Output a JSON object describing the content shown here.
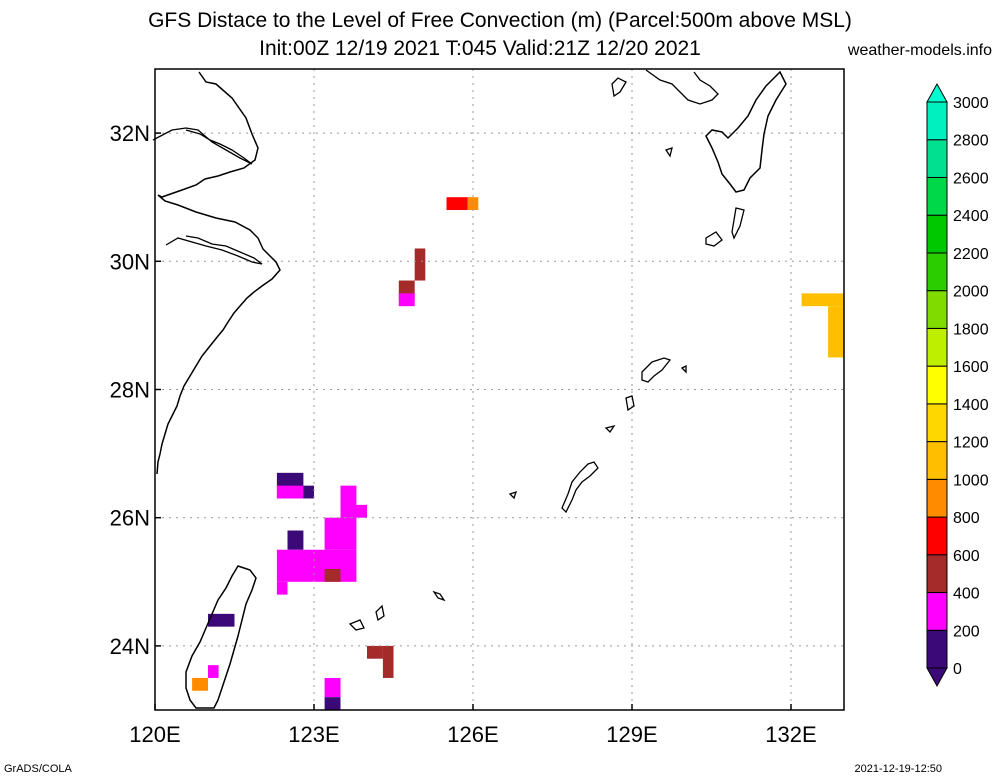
{
  "header": {
    "title_line1": "GFS Distace to the Level of Free Convection (m) (Parcel:500m above MSL)",
    "title_line2": "Init:00Z 12/19 2021 T:045 Valid:21Z 12/20 2021",
    "site": "weather-models.info"
  },
  "footer": {
    "left": "GrADS/COLA",
    "right": "2021-12-19-12:50"
  },
  "chart_data": {
    "type": "heatmap",
    "title": "GFS Distace to the Level of Free Convection (m) (Parcel:500m above MSL)",
    "subtitle": "Init:00Z 12/19 2021 T:045 Valid:21Z 12/20 2021",
    "xlim": [
      120.0,
      133.0
    ],
    "ylim": [
      23.0,
      33.0
    ],
    "x_ticks": [
      {
        "value": 120,
        "label": "120E"
      },
      {
        "value": 123,
        "label": "123E"
      },
      {
        "value": 126,
        "label": "126E"
      },
      {
        "value": 129,
        "label": "129E"
      },
      {
        "value": 132,
        "label": "132E"
      }
    ],
    "y_ticks": [
      {
        "value": 24,
        "label": "24N"
      },
      {
        "value": 26,
        "label": "26N"
      },
      {
        "value": 28,
        "label": "28N"
      },
      {
        "value": 30,
        "label": "30N"
      },
      {
        "value": 32,
        "label": "32N"
      }
    ],
    "grid": true,
    "colorbar": {
      "levels": [
        0,
        200,
        400,
        600,
        800,
        1000,
        1200,
        1400,
        1600,
        1800,
        2000,
        2200,
        2400,
        2600,
        2800,
        3000
      ],
      "labels": [
        "0",
        "200",
        "400",
        "600",
        "800",
        "1000",
        "1200",
        "1400",
        "1600",
        "1800",
        "2000",
        "2200",
        "2400",
        "2600",
        "2800",
        "3000"
      ],
      "colors": [
        "#3c0a78",
        "#ff00ff",
        "#a52a2a",
        "#ff0000",
        "#ff8c00",
        "#ffbf00",
        "#ffd700",
        "#ffff00",
        "#bfef00",
        "#80dc00",
        "#2ccd00",
        "#00c800",
        "#00d84a",
        "#00e090",
        "#00f0c0"
      ],
      "under_color": "#3c0a78",
      "over_color": "#00ffd0"
    },
    "cells": [
      {
        "lon": 125.5,
        "lat": 30.8,
        "lon2": 125.9,
        "lat2": 31.0,
        "value": 500,
        "color": "#ff0000"
      },
      {
        "lon": 125.9,
        "lat": 30.8,
        "lon2": 126.1,
        "lat2": 31.0,
        "value": 800,
        "color": "#ff8c00"
      },
      {
        "lon": 124.9,
        "lat": 29.7,
        "lon2": 125.1,
        "lat2": 30.2,
        "value": 300,
        "color": "#a52a2a"
      },
      {
        "lon": 124.6,
        "lat": 29.4,
        "lon2": 124.9,
        "lat2": 29.7,
        "value": 300,
        "color": "#a52a2a"
      },
      {
        "lon": 124.6,
        "lat": 29.3,
        "lon2": 124.9,
        "lat2": 29.5,
        "value": 150,
        "color": "#ff00ff"
      },
      {
        "lon": 132.2,
        "lat": 29.3,
        "lon2": 133.0,
        "lat2": 29.5,
        "value": 900,
        "color": "#ffbf00"
      },
      {
        "lon": 132.7,
        "lat": 28.5,
        "lon2": 133.0,
        "lat2": 29.3,
        "value": 900,
        "color": "#ffbf00"
      },
      {
        "lon": 122.3,
        "lat": 26.3,
        "lon2": 122.8,
        "lat2": 26.7,
        "value": 50,
        "color": "#3c0a78"
      },
      {
        "lon": 122.3,
        "lat": 26.3,
        "lon2": 122.8,
        "lat2": 26.5,
        "value": 150,
        "color": "#ff00ff"
      },
      {
        "lon": 122.8,
        "lat": 26.3,
        "lon2": 123.0,
        "lat2": 26.5,
        "value": 50,
        "color": "#3c0a78"
      },
      {
        "lon": 123.5,
        "lat": 26.0,
        "lon2": 123.8,
        "lat2": 26.5,
        "value": 150,
        "color": "#ff00ff"
      },
      {
        "lon": 123.5,
        "lat": 26.0,
        "lon2": 124.0,
        "lat2": 26.2,
        "value": 150,
        "color": "#ff00ff"
      },
      {
        "lon": 122.5,
        "lat": 25.5,
        "lon2": 122.8,
        "lat2": 25.8,
        "value": 50,
        "color": "#3c0a78"
      },
      {
        "lon": 123.2,
        "lat": 25.5,
        "lon2": 123.8,
        "lat2": 26.0,
        "value": 150,
        "color": "#ff00ff"
      },
      {
        "lon": 122.3,
        "lat": 25.0,
        "lon2": 123.8,
        "lat2": 25.5,
        "value": 150,
        "color": "#ff00ff"
      },
      {
        "lon": 122.3,
        "lat": 24.8,
        "lon2": 122.5,
        "lat2": 25.0,
        "value": 150,
        "color": "#ff00ff"
      },
      {
        "lon": 123.2,
        "lat": 25.0,
        "lon2": 123.5,
        "lat2": 25.2,
        "value": 300,
        "color": "#a52a2a"
      },
      {
        "lon": 121.0,
        "lat": 24.3,
        "lon2": 121.5,
        "lat2": 24.5,
        "value": 50,
        "color": "#3c0a78"
      },
      {
        "lon": 121.0,
        "lat": 23.5,
        "lon2": 121.2,
        "lat2": 23.7,
        "value": 150,
        "color": "#ff00ff"
      },
      {
        "lon": 120.7,
        "lat": 23.3,
        "lon2": 121.0,
        "lat2": 23.5,
        "value": 700,
        "color": "#ff8c00"
      },
      {
        "lon": 124.0,
        "lat": 23.8,
        "lon2": 124.3,
        "lat2": 24.0,
        "value": 300,
        "color": "#a52a2a"
      },
      {
        "lon": 124.3,
        "lat": 23.5,
        "lon2": 124.5,
        "lat2": 24.0,
        "value": 300,
        "color": "#a52a2a"
      },
      {
        "lon": 123.2,
        "lat": 23.2,
        "lon2": 123.5,
        "lat2": 23.5,
        "value": 150,
        "color": "#ff00ff"
      },
      {
        "lon": 123.2,
        "lat": 23.0,
        "lon2": 123.5,
        "lat2": 23.2,
        "value": 50,
        "color": "#3c0a78"
      }
    ]
  }
}
